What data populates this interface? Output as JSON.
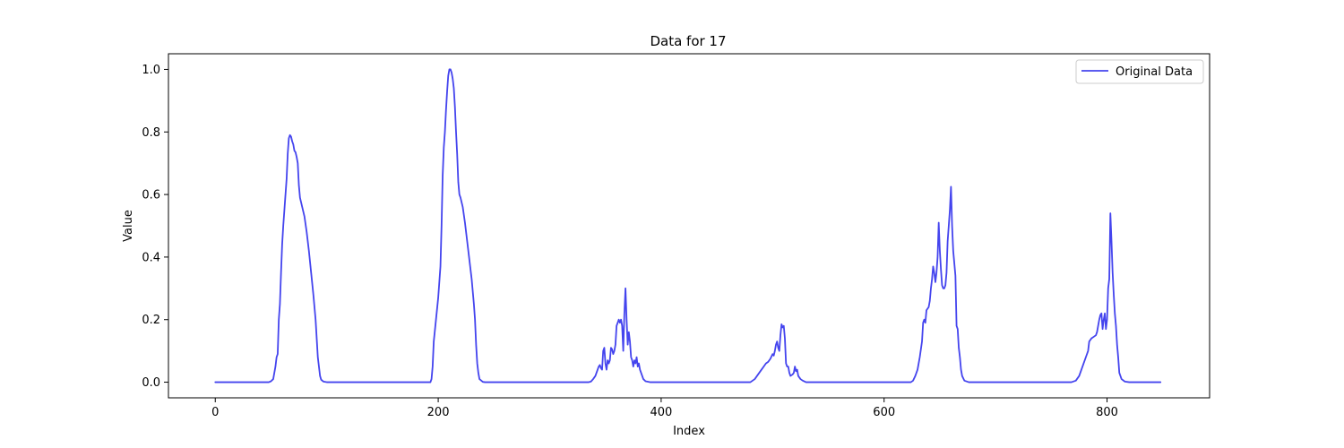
{
  "chart_data": {
    "type": "line",
    "title": "Data for 17",
    "xlabel": "Index",
    "ylabel": "Value",
    "xlim": [
      -42,
      892
    ],
    "ylim": [
      -0.05,
      1.05
    ],
    "xticks": [
      0,
      200,
      400,
      600,
      800
    ],
    "yticks": [
      0.0,
      0.2,
      0.4,
      0.6,
      0.8,
      1.0
    ],
    "ytick_labels": [
      "0.0",
      "0.2",
      "0.4",
      "0.6",
      "0.8",
      "1.0"
    ],
    "grid": false,
    "legend": {
      "position": "top-right"
    },
    "series": [
      {
        "name": "Original Data",
        "color": "#4444ee",
        "points": [
          [
            0,
            0
          ],
          [
            48,
            0
          ],
          [
            50,
            0.003
          ],
          [
            52,
            0.01
          ],
          [
            54,
            0.05
          ],
          [
            55,
            0.08
          ],
          [
            56,
            0.09
          ],
          [
            57,
            0.2
          ],
          [
            58,
            0.25
          ],
          [
            59,
            0.35
          ],
          [
            60,
            0.44
          ],
          [
            61,
            0.5
          ],
          [
            62,
            0.55
          ],
          [
            63,
            0.6
          ],
          [
            64,
            0.65
          ],
          [
            65,
            0.73
          ],
          [
            66,
            0.78
          ],
          [
            67,
            0.79
          ],
          [
            68,
            0.785
          ],
          [
            69,
            0.77
          ],
          [
            70,
            0.76
          ],
          [
            71,
            0.74
          ],
          [
            72,
            0.735
          ],
          [
            73,
            0.72
          ],
          [
            74,
            0.7
          ],
          [
            75,
            0.63
          ],
          [
            76,
            0.59
          ],
          [
            77,
            0.575
          ],
          [
            78,
            0.56
          ],
          [
            80,
            0.53
          ],
          [
            82,
            0.48
          ],
          [
            84,
            0.42
          ],
          [
            86,
            0.35
          ],
          [
            88,
            0.28
          ],
          [
            90,
            0.2
          ],
          [
            91,
            0.14
          ],
          [
            92,
            0.08
          ],
          [
            93,
            0.05
          ],
          [
            94,
            0.02
          ],
          [
            95,
            0.008
          ],
          [
            97,
            0.002
          ],
          [
            100,
            0
          ],
          [
            193,
            0
          ],
          [
            194,
            0.01
          ],
          [
            195,
            0.05
          ],
          [
            196,
            0.13
          ],
          [
            198,
            0.2
          ],
          [
            200,
            0.27
          ],
          [
            202,
            0.37
          ],
          [
            203,
            0.5
          ],
          [
            204,
            0.66
          ],
          [
            205,
            0.75
          ],
          [
            206,
            0.8
          ],
          [
            207,
            0.87
          ],
          [
            208,
            0.93
          ],
          [
            209,
            0.98
          ],
          [
            210,
            1.0
          ],
          [
            211,
            1.0
          ],
          [
            212,
            0.99
          ],
          [
            213,
            0.97
          ],
          [
            214,
            0.94
          ],
          [
            215,
            0.88
          ],
          [
            216,
            0.8
          ],
          [
            217,
            0.73
          ],
          [
            218,
            0.64
          ],
          [
            219,
            0.6
          ],
          [
            220,
            0.59
          ],
          [
            222,
            0.56
          ],
          [
            224,
            0.51
          ],
          [
            226,
            0.45
          ],
          [
            228,
            0.39
          ],
          [
            230,
            0.33
          ],
          [
            232,
            0.25
          ],
          [
            233,
            0.2
          ],
          [
            234,
            0.12
          ],
          [
            235,
            0.06
          ],
          [
            236,
            0.03
          ],
          [
            237,
            0.01
          ],
          [
            240,
            0.001
          ],
          [
            242,
            0
          ],
          [
            335,
            0
          ],
          [
            337,
            0.002
          ],
          [
            339,
            0.01
          ],
          [
            341,
            0.02
          ],
          [
            343,
            0.04
          ],
          [
            344,
            0.05
          ],
          [
            345,
            0.055
          ],
          [
            346,
            0.045
          ],
          [
            347,
            0.04
          ],
          [
            348,
            0.1
          ],
          [
            349,
            0.11
          ],
          [
            350,
            0.06
          ],
          [
            351,
            0.04
          ],
          [
            352,
            0.07
          ],
          [
            353,
            0.06
          ],
          [
            354,
            0.07
          ],
          [
            355,
            0.11
          ],
          [
            356,
            0.105
          ],
          [
            357,
            0.09
          ],
          [
            358,
            0.1
          ],
          [
            359,
            0.12
          ],
          [
            360,
            0.18
          ],
          [
            361,
            0.19
          ],
          [
            362,
            0.2
          ],
          [
            363,
            0.19
          ],
          [
            364,
            0.2
          ],
          [
            365,
            0.18
          ],
          [
            366,
            0.1
          ],
          [
            367,
            0.22
          ],
          [
            368,
            0.3
          ],
          [
            369,
            0.2
          ],
          [
            370,
            0.12
          ],
          [
            371,
            0.16
          ],
          [
            372,
            0.13
          ],
          [
            373,
            0.08
          ],
          [
            374,
            0.07
          ],
          [
            375,
            0.05
          ],
          [
            376,
            0.07
          ],
          [
            377,
            0.06
          ],
          [
            378,
            0.08
          ],
          [
            379,
            0.05
          ],
          [
            380,
            0.06
          ],
          [
            381,
            0.04
          ],
          [
            382,
            0.03
          ],
          [
            384,
            0.01
          ],
          [
            386,
            0.003
          ],
          [
            390,
            0
          ],
          [
            480,
            0
          ],
          [
            484,
            0.01
          ],
          [
            486,
            0.02
          ],
          [
            488,
            0.03
          ],
          [
            490,
            0.04
          ],
          [
            492,
            0.05
          ],
          [
            494,
            0.06
          ],
          [
            496,
            0.065
          ],
          [
            498,
            0.075
          ],
          [
            500,
            0.09
          ],
          [
            501,
            0.085
          ],
          [
            502,
            0.1
          ],
          [
            503,
            0.12
          ],
          [
            504,
            0.13
          ],
          [
            505,
            0.11
          ],
          [
            506,
            0.1
          ],
          [
            507,
            0.15
          ],
          [
            508,
            0.185
          ],
          [
            509,
            0.175
          ],
          [
            510,
            0.18
          ],
          [
            511,
            0.14
          ],
          [
            512,
            0.06
          ],
          [
            513,
            0.05
          ],
          [
            514,
            0.05
          ],
          [
            515,
            0.03
          ],
          [
            516,
            0.02
          ],
          [
            518,
            0.025
          ],
          [
            519,
            0.03
          ],
          [
            520,
            0.05
          ],
          [
            521,
            0.035
          ],
          [
            522,
            0.04
          ],
          [
            523,
            0.02
          ],
          [
            525,
            0.01
          ],
          [
            527,
            0.005
          ],
          [
            530,
            0
          ],
          [
            624,
            0
          ],
          [
            626,
            0.005
          ],
          [
            628,
            0.02
          ],
          [
            630,
            0.04
          ],
          [
            632,
            0.08
          ],
          [
            634,
            0.13
          ],
          [
            635,
            0.19
          ],
          [
            636,
            0.2
          ],
          [
            637,
            0.19
          ],
          [
            638,
            0.23
          ],
          [
            640,
            0.24
          ],
          [
            641,
            0.26
          ],
          [
            642,
            0.3
          ],
          [
            643,
            0.33
          ],
          [
            644,
            0.37
          ],
          [
            645,
            0.35
          ],
          [
            646,
            0.32
          ],
          [
            647,
            0.35
          ],
          [
            648,
            0.4
          ],
          [
            649,
            0.51
          ],
          [
            650,
            0.42
          ],
          [
            651,
            0.36
          ],
          [
            652,
            0.31
          ],
          [
            653,
            0.3
          ],
          [
            654,
            0.3
          ],
          [
            655,
            0.31
          ],
          [
            656,
            0.35
          ],
          [
            657,
            0.45
          ],
          [
            658,
            0.5
          ],
          [
            659,
            0.55
          ],
          [
            660,
            0.625
          ],
          [
            661,
            0.5
          ],
          [
            662,
            0.42
          ],
          [
            663,
            0.38
          ],
          [
            664,
            0.34
          ],
          [
            665,
            0.18
          ],
          [
            666,
            0.17
          ],
          [
            667,
            0.11
          ],
          [
            668,
            0.08
          ],
          [
            669,
            0.04
          ],
          [
            670,
            0.02
          ],
          [
            672,
            0.005
          ],
          [
            676,
            0
          ],
          [
            768,
            0
          ],
          [
            772,
            0.005
          ],
          [
            775,
            0.02
          ],
          [
            777,
            0.04
          ],
          [
            779,
            0.06
          ],
          [
            781,
            0.08
          ],
          [
            783,
            0.1
          ],
          [
            784,
            0.13
          ],
          [
            786,
            0.14
          ],
          [
            788,
            0.145
          ],
          [
            790,
            0.15
          ],
          [
            791,
            0.16
          ],
          [
            792,
            0.18
          ],
          [
            793,
            0.2
          ],
          [
            794,
            0.215
          ],
          [
            795,
            0.22
          ],
          [
            796,
            0.17
          ],
          [
            797,
            0.2
          ],
          [
            798,
            0.22
          ],
          [
            799,
            0.17
          ],
          [
            800,
            0.2
          ],
          [
            801,
            0.3
          ],
          [
            802,
            0.33
          ],
          [
            803,
            0.54
          ],
          [
            804,
            0.45
          ],
          [
            805,
            0.35
          ],
          [
            806,
            0.28
          ],
          [
            807,
            0.22
          ],
          [
            808,
            0.18
          ],
          [
            809,
            0.12
          ],
          [
            810,
            0.08
          ],
          [
            811,
            0.03
          ],
          [
            813,
            0.01
          ],
          [
            816,
            0.002
          ],
          [
            820,
            0
          ],
          [
            848,
            0
          ]
        ]
      }
    ]
  }
}
